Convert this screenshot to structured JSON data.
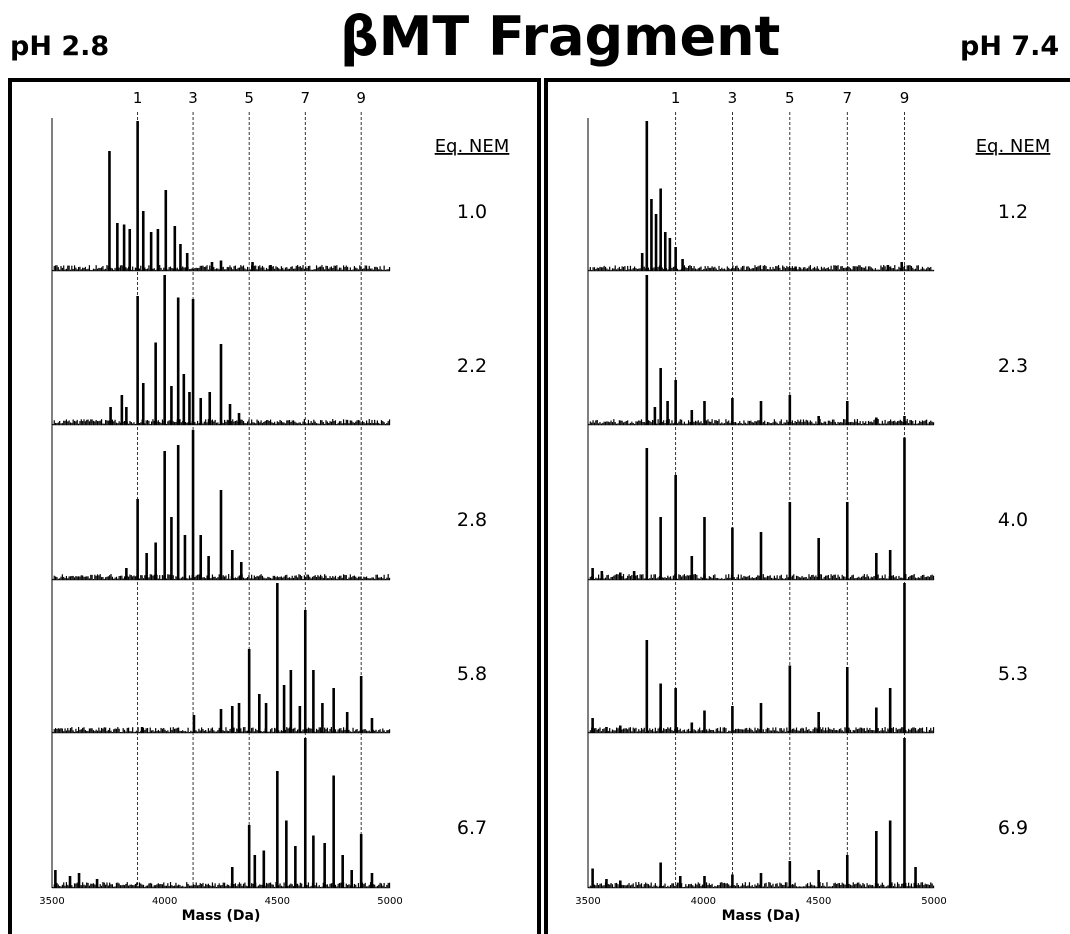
{
  "title": "βMT Fragment",
  "ph_left": "pH 2.8",
  "ph_right": "pH 7.4",
  "chart_data": [
    {
      "type": "bar",
      "panel": "pH 2.8",
      "xlabel": "Mass (Da)",
      "xlim": [
        3500,
        5000
      ],
      "xticks": [
        3500,
        4000,
        4500,
        5000
      ],
      "ref_lines": [
        {
          "label": "1",
          "mass": 3880
        },
        {
          "label": "3",
          "mass": 4126
        },
        {
          "label": "5",
          "mass": 4375
        },
        {
          "label": "7",
          "mass": 4624
        },
        {
          "label": "9",
          "mass": 4872
        }
      ],
      "legend_header": "Eq. NEM",
      "traces": [
        {
          "label": "1.0",
          "peaks": [
            [
              3755,
              0.8
            ],
            [
              3790,
              0.32
            ],
            [
              3820,
              0.31
            ],
            [
              3845,
              0.28
            ],
            [
              3880,
              1.0
            ],
            [
              3905,
              0.4
            ],
            [
              3940,
              0.26
            ],
            [
              3970,
              0.28
            ],
            [
              4005,
              0.54
            ],
            [
              4045,
              0.3
            ],
            [
              4070,
              0.18
            ],
            [
              4100,
              0.12
            ],
            [
              4210,
              0.06
            ],
            [
              4250,
              0.07
            ],
            [
              4390,
              0.06
            ],
            [
              4470,
              0.04
            ]
          ]
        },
        {
          "label": "2.2",
          "peaks": [
            [
              3760,
              0.12
            ],
            [
              3810,
              0.2
            ],
            [
              3830,
              0.12
            ],
            [
              3880,
              0.86
            ],
            [
              3905,
              0.28
            ],
            [
              3960,
              0.55
            ],
            [
              4000,
              1.0
            ],
            [
              4030,
              0.26
            ],
            [
              4060,
              0.85
            ],
            [
              4085,
              0.34
            ],
            [
              4110,
              0.22
            ],
            [
              4126,
              0.84
            ],
            [
              4160,
              0.18
            ],
            [
              4200,
              0.22
            ],
            [
              4250,
              0.54
            ],
            [
              4290,
              0.14
            ],
            [
              4330,
              0.08
            ]
          ]
        },
        {
          "label": "2.8",
          "peaks": [
            [
              3830,
              0.08
            ],
            [
              3880,
              0.54
            ],
            [
              3920,
              0.18
            ],
            [
              3960,
              0.25
            ],
            [
              4000,
              0.86
            ],
            [
              4030,
              0.42
            ],
            [
              4060,
              0.9
            ],
            [
              4090,
              0.3
            ],
            [
              4126,
              1.0
            ],
            [
              4160,
              0.3
            ],
            [
              4195,
              0.16
            ],
            [
              4250,
              0.6
            ],
            [
              4300,
              0.2
            ],
            [
              4340,
              0.12
            ]
          ]
        },
        {
          "label": "5.8",
          "peaks": [
            [
              3900,
              0.04
            ],
            [
              4130,
              0.12
            ],
            [
              4250,
              0.16
            ],
            [
              4300,
              0.18
            ],
            [
              4330,
              0.2
            ],
            [
              4375,
              0.56
            ],
            [
              4420,
              0.26
            ],
            [
              4450,
              0.2
            ],
            [
              4500,
              1.0
            ],
            [
              4530,
              0.32
            ],
            [
              4560,
              0.42
            ],
            [
              4600,
              0.18
            ],
            [
              4624,
              0.82
            ],
            [
              4660,
              0.42
            ],
            [
              4700,
              0.2
            ],
            [
              4750,
              0.3
            ],
            [
              4810,
              0.14
            ],
            [
              4872,
              0.38
            ],
            [
              4920,
              0.1
            ]
          ]
        },
        {
          "label": "6.7",
          "peaks": [
            [
              3515,
              0.12
            ],
            [
              3580,
              0.08
            ],
            [
              3620,
              0.1
            ],
            [
              3700,
              0.06
            ],
            [
              4300,
              0.14
            ],
            [
              4375,
              0.42
            ],
            [
              4400,
              0.22
            ],
            [
              4440,
              0.25
            ],
            [
              4500,
              0.78
            ],
            [
              4540,
              0.45
            ],
            [
              4580,
              0.28
            ],
            [
              4624,
              1.0
            ],
            [
              4660,
              0.35
            ],
            [
              4710,
              0.3
            ],
            [
              4750,
              0.75
            ],
            [
              4790,
              0.22
            ],
            [
              4830,
              0.12
            ],
            [
              4872,
              0.36
            ],
            [
              4920,
              0.1
            ]
          ]
        }
      ]
    },
    {
      "type": "bar",
      "panel": "pH 7.4",
      "xlabel": "Mass (Da)",
      "xlim": [
        3500,
        5000
      ],
      "xticks": [
        3500,
        4000,
        4500,
        5000
      ],
      "ref_lines": [
        {
          "label": "1",
          "mass": 3880
        },
        {
          "label": "3",
          "mass": 4126
        },
        {
          "label": "5",
          "mass": 4375
        },
        {
          "label": "7",
          "mass": 4624
        },
        {
          "label": "9",
          "mass": 4872
        }
      ],
      "legend_header": "Eq. NEM",
      "traces": [
        {
          "label": "1.2",
          "peaks": [
            [
              3735,
              0.12
            ],
            [
              3755,
              1.0
            ],
            [
              3775,
              0.48
            ],
            [
              3795,
              0.38
            ],
            [
              3815,
              0.55
            ],
            [
              3835,
              0.26
            ],
            [
              3855,
              0.22
            ],
            [
              3880,
              0.16
            ],
            [
              3910,
              0.08
            ],
            [
              4400,
              0.03
            ],
            [
              4800,
              0.04
            ],
            [
              4860,
              0.06
            ]
          ]
        },
        {
          "label": "2.3",
          "peaks": [
            [
              3755,
              1.0
            ],
            [
              3790,
              0.12
            ],
            [
              3815,
              0.38
            ],
            [
              3845,
              0.16
            ],
            [
              3880,
              0.3
            ],
            [
              3950,
              0.1
            ],
            [
              4005,
              0.16
            ],
            [
              4126,
              0.18
            ],
            [
              4250,
              0.16
            ],
            [
              4375,
              0.2
            ],
            [
              4500,
              0.06
            ],
            [
              4624,
              0.16
            ],
            [
              4750,
              0.05
            ],
            [
              4872,
              0.06
            ]
          ]
        },
        {
          "label": "4.0",
          "peaks": [
            [
              3520,
              0.08
            ],
            [
              3560,
              0.06
            ],
            [
              3640,
              0.05
            ],
            [
              3700,
              0.06
            ],
            [
              3755,
              0.88
            ],
            [
              3815,
              0.42
            ],
            [
              3880,
              0.7
            ],
            [
              3950,
              0.16
            ],
            [
              4005,
              0.42
            ],
            [
              4126,
              0.35
            ],
            [
              4250,
              0.32
            ],
            [
              4375,
              0.52
            ],
            [
              4500,
              0.28
            ],
            [
              4624,
              0.52
            ],
            [
              4750,
              0.18
            ],
            [
              4810,
              0.2
            ],
            [
              4872,
              0.95
            ]
          ]
        },
        {
          "label": "5.3",
          "peaks": [
            [
              3520,
              0.1
            ],
            [
              3580,
              0.04
            ],
            [
              3640,
              0.05
            ],
            [
              3755,
              0.62
            ],
            [
              3815,
              0.33
            ],
            [
              3880,
              0.3
            ],
            [
              3950,
              0.07
            ],
            [
              4005,
              0.15
            ],
            [
              4126,
              0.18
            ],
            [
              4250,
              0.2
            ],
            [
              4375,
              0.45
            ],
            [
              4500,
              0.14
            ],
            [
              4624,
              0.44
            ],
            [
              4750,
              0.17
            ],
            [
              4810,
              0.3
            ],
            [
              4872,
              1.0
            ]
          ]
        },
        {
          "label": "6.9",
          "peaks": [
            [
              3520,
              0.13
            ],
            [
              3580,
              0.06
            ],
            [
              3640,
              0.05
            ],
            [
              3815,
              0.17
            ],
            [
              3900,
              0.08
            ],
            [
              4005,
              0.08
            ],
            [
              4126,
              0.09
            ],
            [
              4250,
              0.1
            ],
            [
              4375,
              0.18
            ],
            [
              4500,
              0.12
            ],
            [
              4624,
              0.22
            ],
            [
              4750,
              0.38
            ],
            [
              4810,
              0.45
            ],
            [
              4872,
              1.0
            ],
            [
              4920,
              0.14
            ]
          ]
        }
      ]
    }
  ]
}
